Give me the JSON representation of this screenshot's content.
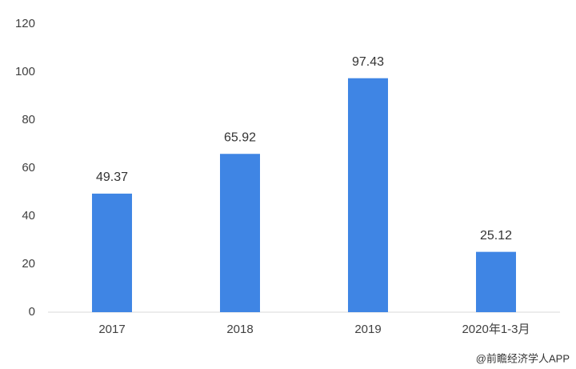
{
  "chart_data": {
    "type": "bar",
    "categories": [
      "2017",
      "2018",
      "2019",
      "2020年1-3月"
    ],
    "values": [
      49.37,
      65.92,
      97.43,
      25.12
    ],
    "color": "#3f85e4",
    "ylim": [
      0,
      120
    ],
    "yticks": [
      0,
      20,
      40,
      60,
      80,
      100,
      120
    ],
    "grid": false,
    "source": "@前瞻经济学人APP"
  }
}
